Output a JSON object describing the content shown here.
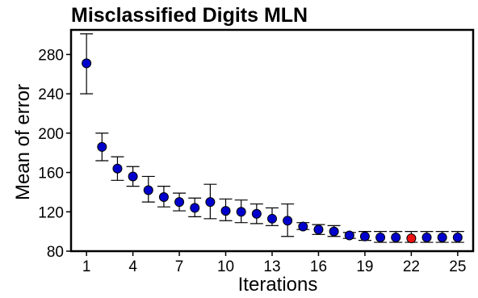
{
  "chart_data": {
    "type": "scatter",
    "title": "Misclassified Digits MLN",
    "xlabel": "Iterations",
    "ylabel": "Mean of error",
    "xlim": [
      0,
      26
    ],
    "ylim": [
      80,
      305
    ],
    "x_ticks": [
      1,
      4,
      7,
      10,
      13,
      16,
      19,
      22,
      25
    ],
    "y_ticks": [
      80,
      120,
      160,
      200,
      240,
      280
    ],
    "grid": false,
    "error_bars": true,
    "colors": {
      "point": "#0000cc",
      "highlight": "#ee1111",
      "axis": "#000000"
    },
    "highlight_x": 22,
    "series": [
      {
        "x": [
          1,
          2,
          3,
          4,
          5,
          6,
          7,
          8,
          9,
          10,
          11,
          12,
          13,
          14,
          15,
          16,
          17,
          18,
          19,
          20,
          21,
          22,
          23,
          24,
          25
        ],
        "y": [
          271,
          186,
          164,
          156,
          142,
          135,
          130,
          124,
          130,
          121,
          120,
          118,
          113,
          111,
          105,
          102,
          100,
          96,
          95,
          94,
          94,
          93,
          94,
          94,
          94
        ],
        "err_low": [
          240,
          172,
          152,
          146,
          130,
          125,
          121,
          115,
          113,
          111,
          109,
          108,
          106,
          95,
          102,
          97,
          95,
          93,
          91,
          89,
          89,
          89,
          89,
          89,
          89
        ],
        "err_high": [
          301,
          200,
          176,
          166,
          156,
          146,
          139,
          134,
          148,
          133,
          132,
          128,
          124,
          128,
          109,
          107,
          106,
          99,
          100,
          100,
          100,
          100,
          100,
          100,
          100
        ]
      }
    ]
  }
}
